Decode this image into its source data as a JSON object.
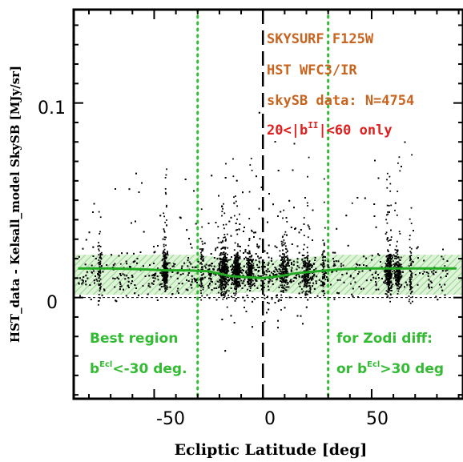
{
  "chart_data": {
    "type": "scatter",
    "xlabel": "Ecliptic Latitude [deg]",
    "ylabel": "HST_data - Kelsall_model SkySB [MJy/sr]",
    "xlim": [
      -87,
      92
    ],
    "ylim": [
      -0.052,
      0.148
    ],
    "x_ticks": [
      -50,
      0,
      50
    ],
    "x_tick_labels": [
      "-50",
      "0",
      "50"
    ],
    "y_ticks": [
      0,
      0.1
    ],
    "y_tick_labels": [
      "0",
      "0.1"
    ],
    "grid": false,
    "annotations": [
      {
        "text": "SKYSURF F125W",
        "color": "#c8641e"
      },
      {
        "text": "HST WFC3/IR",
        "color": "#c8641e"
      },
      {
        "text": "skySB data: N=4754",
        "color": "#c8641e"
      },
      {
        "text": "20<|b",
        "sup": "II",
        "after": "|<60 only",
        "color": "#e0201e"
      }
    ],
    "region_notes": {
      "left_line1": "Best region",
      "left_line2_prefix": "b",
      "left_line2_sup": "Ecl",
      "left_line2_suffix": "<-30 deg.",
      "right_line1": "for Zodi diff:",
      "right_line2_prefix": "or b",
      "right_line2_sup": "Ecl",
      "right_line2_suffix": ">30 deg"
    },
    "reference_lines": {
      "vertical_dotted_green": [
        -30,
        30
      ],
      "vertical_dashed_black": [
        0
      ],
      "horizontal_dotted_black": [
        0
      ]
    },
    "running_median": {
      "x": [
        -85,
        -70,
        -55,
        -45,
        -35,
        -25,
        -15,
        -8,
        0,
        8,
        15,
        25,
        35,
        45,
        55,
        65,
        75,
        89
      ],
      "y": [
        0.015,
        0.015,
        0.0145,
        0.014,
        0.014,
        0.0135,
        0.011,
        0.0105,
        0.01,
        0.011,
        0.0125,
        0.0135,
        0.0145,
        0.015,
        0.015,
        0.015,
        0.015,
        0.015
      ]
    },
    "uncertainty_band": {
      "x": [
        -85,
        -30,
        -15,
        0,
        15,
        30,
        89
      ],
      "upper": [
        0.022,
        0.022,
        0.02,
        0.019,
        0.02,
        0.022,
        0.022
      ],
      "lower": [
        0.0015,
        0.0015,
        0.002,
        0.003,
        0.002,
        0.0015,
        0.0015
      ],
      "color": "#33bb33"
    },
    "points_count": 4754,
    "point_color": "#000000",
    "line_color": "#22aa22"
  }
}
